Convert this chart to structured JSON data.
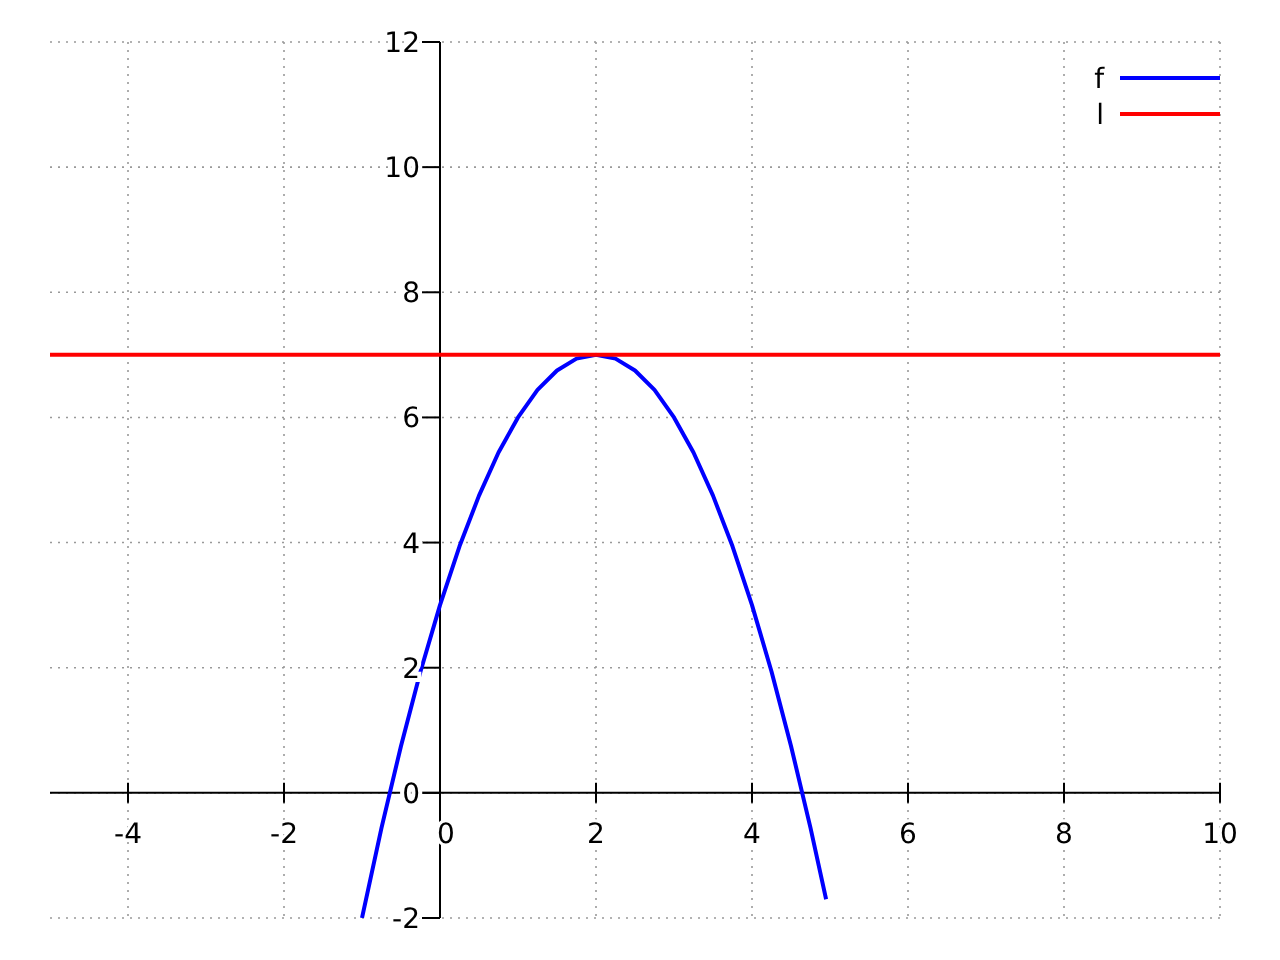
{
  "chart_data": {
    "type": "line",
    "xlim": [
      -5,
      10
    ],
    "ylim": [
      -2,
      12
    ],
    "xticks": [
      -4,
      -2,
      0,
      2,
      4,
      6,
      8,
      10
    ],
    "yticks": [
      -2,
      0,
      2,
      4,
      6,
      8,
      10,
      12
    ],
    "grid": true,
    "legend": "top right",
    "line_style": "solid",
    "series": [
      {
        "name": "f",
        "color": "#0000ff",
        "x": [
          -1,
          -0.75,
          -0.5,
          -0.25,
          0,
          0.25,
          0.5,
          0.75,
          1,
          1.25,
          1.5,
          1.75,
          2,
          2.25,
          2.5,
          2.75,
          3,
          3.25,
          3.5,
          3.75,
          4,
          4.25,
          4.5,
          4.75,
          4.95
        ],
        "values": [
          -2,
          -0.56,
          0.75,
          1.94,
          3,
          3.94,
          4.75,
          5.44,
          6,
          6.44,
          6.75,
          6.94,
          7,
          6.94,
          6.75,
          6.44,
          6,
          5.44,
          4.75,
          3.94,
          3,
          1.94,
          0.75,
          -0.56,
          -1.7
        ]
      },
      {
        "name": "l",
        "color": "#ff0000",
        "x": [
          -5,
          10
        ],
        "values": [
          7,
          7
        ]
      }
    ]
  }
}
